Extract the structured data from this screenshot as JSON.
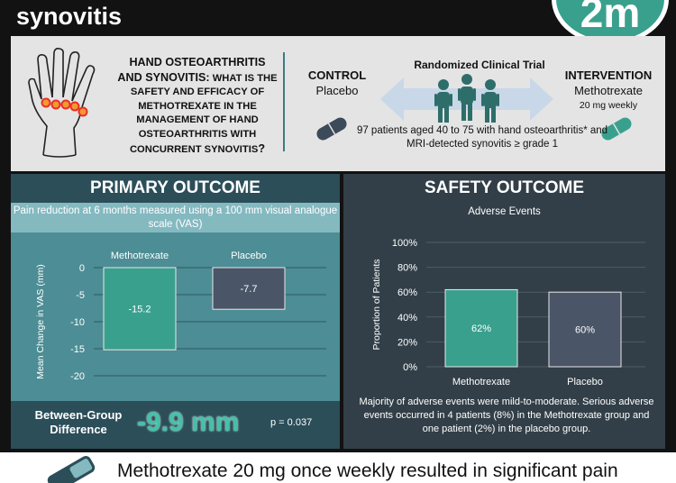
{
  "header": {
    "title": "synovitis",
    "logo_text": "2m"
  },
  "question": {
    "lead": "Hand osteoarthritis and synovitis:",
    "rest": "what is the safety and efficacy of methotrexate in the management of hand osteoarthritis with concurrent synovitis",
    "qmark": "?"
  },
  "trial": {
    "control_heading": "CONTROL",
    "control_arm": "Placebo",
    "design": "Randomized Clinical Trial",
    "intervention_heading": "INTERVENTION",
    "intervention_arm": "Methotrexate",
    "intervention_dose": "20 mg weekly",
    "population": "97 patients aged 40 to 75 with hand osteoarthritis* and MRI-detected synovitis ≥ grade 1"
  },
  "primary": {
    "heading": "PRIMARY OUTCOME",
    "subtitle": "Pain reduction at 6 months measured using a 100 mm visual analogue scale (VAS)",
    "difference_label": "Between-Group Difference",
    "difference_value": "-9.9 mm",
    "p_value": "p = 0.037"
  },
  "safety": {
    "heading": "SAFETY OUTCOME",
    "subtitle": "Adverse Events",
    "note": "Majority of adverse events were mild-to-moderate. Serious adverse events occurred in 4 patients (8%) in the Methotrexate group and one patient (2%) in the placebo group."
  },
  "conclusion": {
    "text": "Methotrexate 20 mg once weekly resulted in significant pain"
  },
  "colors": {
    "methotrexate": "#3aa08e",
    "placebo": "#4a5568",
    "accent": "#43c2a8",
    "dark_teal": "#2b4e59"
  },
  "chart_data": [
    {
      "type": "bar",
      "categories": [
        "Methotrexate",
        "Placebo"
      ],
      "values": [
        -15.2,
        -7.7
      ],
      "value_labels": [
        "-15.2",
        "-7.7"
      ],
      "ylabel": "Mean Change in VAS (mm)",
      "ylim": [
        -20,
        0
      ],
      "yticks": [
        0,
        -5,
        -10,
        -15,
        -20
      ],
      "ytick_labels": [
        "0",
        "-5",
        "-10",
        "-15",
        "-20"
      ],
      "grid": true,
      "category_labels_position": "top"
    },
    {
      "type": "bar",
      "categories": [
        "Methotrexate",
        "Placebo"
      ],
      "values": [
        62,
        60
      ],
      "value_labels": [
        "62%",
        "60%"
      ],
      "ylabel": "Proportion of Patients",
      "ylim": [
        0,
        100
      ],
      "yticks": [
        0,
        20,
        40,
        60,
        80,
        100
      ],
      "ytick_labels": [
        "0%",
        "20%",
        "40%",
        "60%",
        "80%",
        "100%"
      ],
      "grid": true,
      "category_labels_position": "bottom"
    }
  ]
}
